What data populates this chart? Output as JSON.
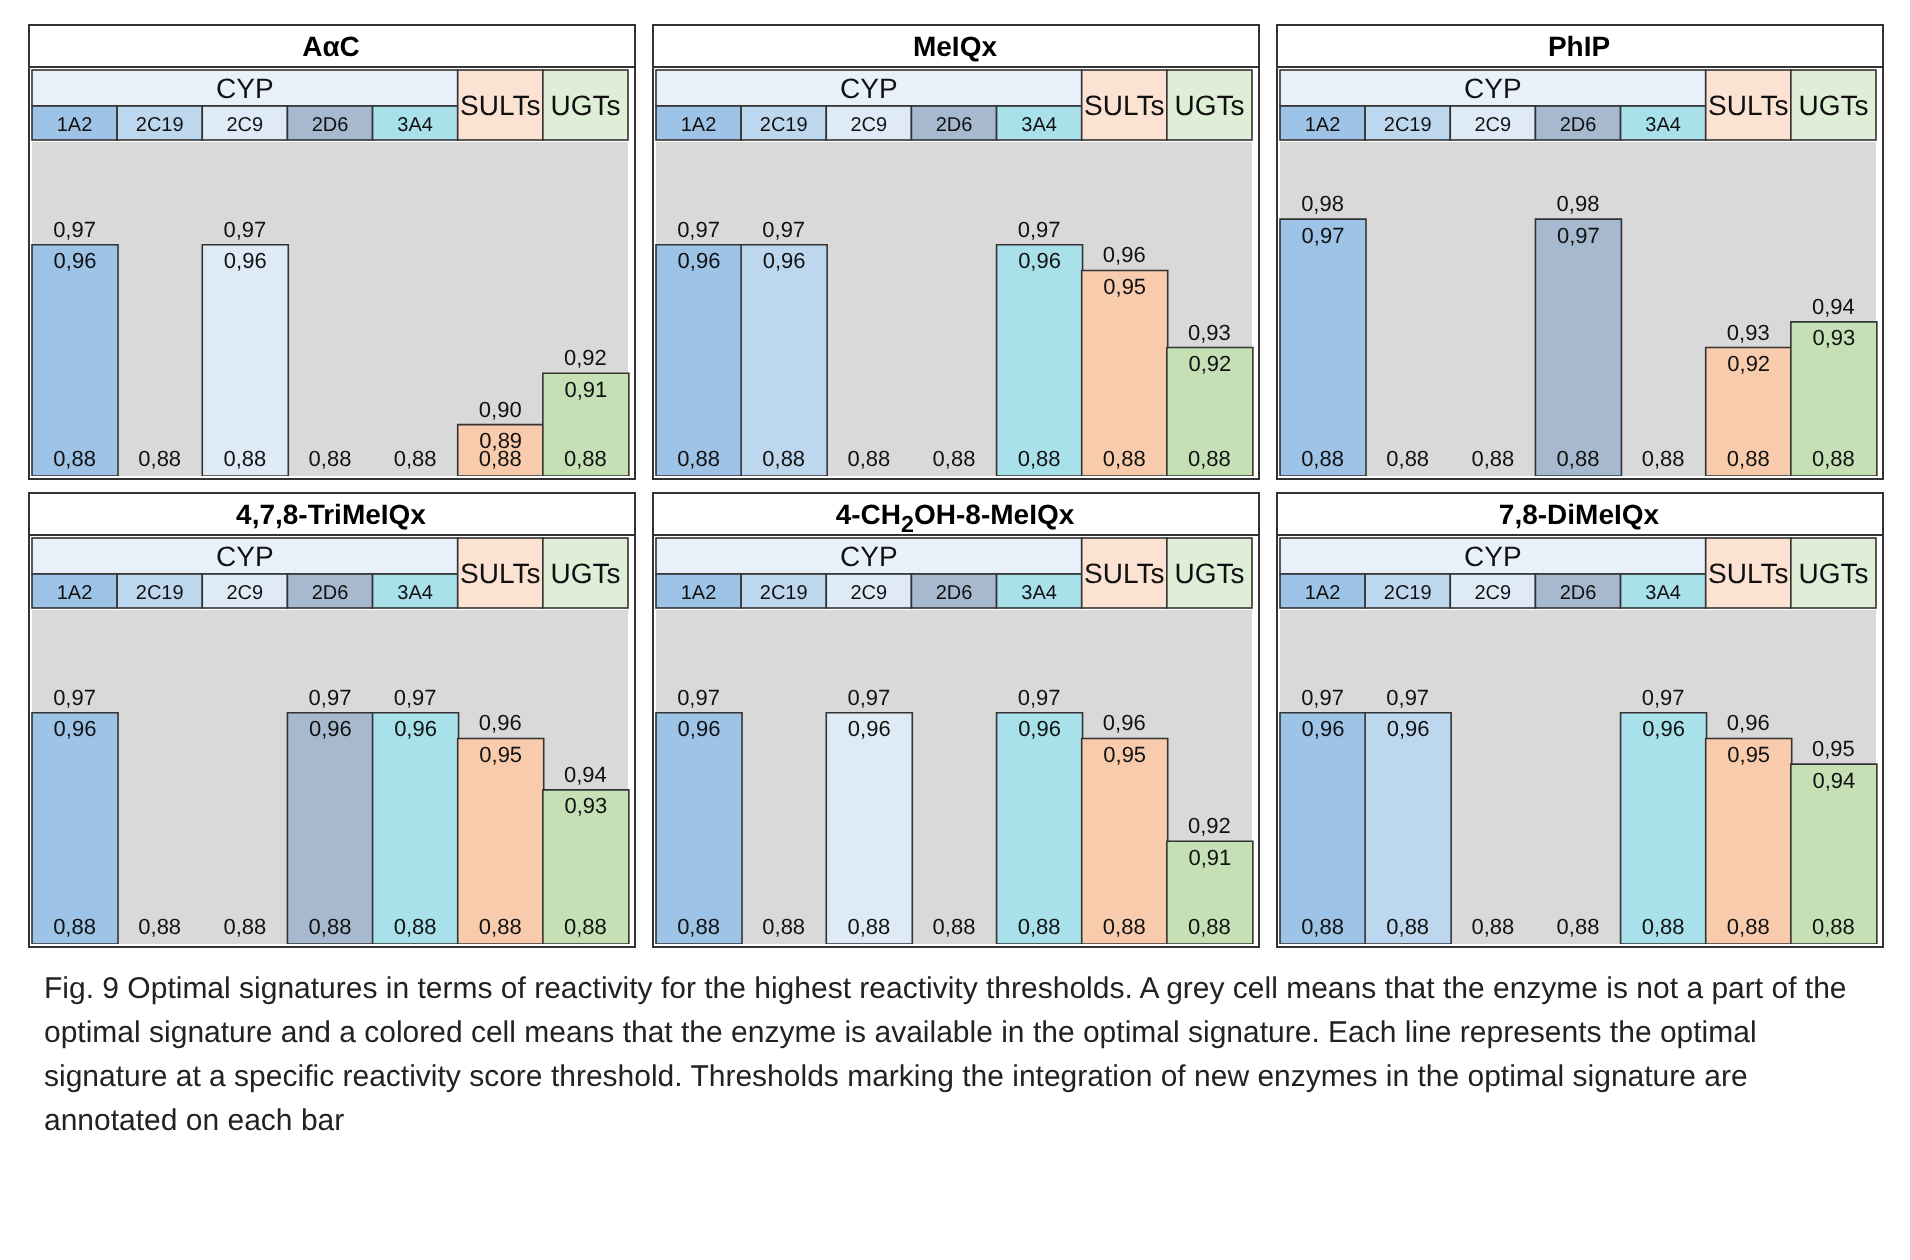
{
  "chart_data": [
    {
      "type": "bar",
      "title": "AαC",
      "xlabel": "CYP",
      "categories": [
        "1A2",
        "2C19",
        "2C9",
        "2D6",
        "3A4",
        "SULTs",
        "UGTs"
      ],
      "values": [
        0.96,
        null,
        0.96,
        null,
        null,
        0.89,
        0.91
      ],
      "value_labels": [
        "0,96",
        null,
        "0,96",
        null,
        null,
        "0,89",
        "0,91"
      ],
      "colors": [
        "#9dc3e6",
        "#bdd7ee",
        "#deebf7",
        "#a6b9cf",
        "#a9e1ea",
        "#f8cbad",
        "#c5e0b4"
      ],
      "ylim": [
        0.87,
        1.0
      ],
      "tick_labels": "x",
      "grid": false,
      "annotations": [
        "0,88",
        "0,88",
        "0,88",
        "0,88",
        "0,88",
        "0,88",
        "0,88",
        {
          "text": "0,97",
          "x": "1A2",
          "y": 0.96
        },
        {
          "text": "0,97",
          "x": "2C9",
          "y": 0.96
        },
        {
          "text": "0,90",
          "x": "SULTs",
          "y": 0.89
        },
        {
          "text": "0,92",
          "x": "UGTs",
          "y": 0.91
        }
      ]
    },
    {
      "type": "bar",
      "title": "MeIQx",
      "xlabel": "CYP",
      "categories": [
        "1A2",
        "2C19",
        "2C9",
        "2D6",
        "3A4",
        "SULTs",
        "UGTs"
      ],
      "values": [
        0.96,
        0.96,
        null,
        null,
        0.96,
        0.95,
        0.92
      ],
      "value_labels": [
        "0,96",
        "0,96",
        null,
        null,
        "0,96",
        "0,95",
        "0,92"
      ],
      "colors": [
        "#9dc3e6",
        "#bdd7ee",
        "#deebf7",
        "#a6b9cf",
        "#a9e1ea",
        "#f8cbad",
        "#c5e0b4"
      ],
      "ylim": [
        0.87,
        1.0
      ],
      "tick_labels": "x",
      "grid": false,
      "annotations": [
        "0,88",
        "0,88",
        "0,88",
        "0,88",
        "0,88",
        "0,88",
        "0,88",
        {
          "text": "0,97",
          "x": "1A2",
          "y": 0.96
        },
        {
          "text": "0,97",
          "x": "2C19",
          "y": 0.96
        },
        {
          "text": "0,97",
          "x": "3A4",
          "y": 0.96
        },
        {
          "text": "0,96",
          "x": "SULTs",
          "y": 0.95
        },
        {
          "text": "0,93",
          "x": "UGTs",
          "y": 0.92
        }
      ]
    },
    {
      "type": "bar",
      "title": "PhIP",
      "xlabel": "CYP",
      "categories": [
        "1A2",
        "2C19",
        "2C9",
        "2D6",
        "3A4",
        "SULTs",
        "UGTs"
      ],
      "values": [
        0.97,
        null,
        null,
        0.97,
        null,
        0.92,
        0.93
      ],
      "value_labels": [
        "0,97",
        null,
        null,
        "0,97",
        null,
        "0,92",
        "0,93"
      ],
      "colors": [
        "#9dc3e6",
        "#bdd7ee",
        "#deebf7",
        "#a6b9cf",
        "#a9e1ea",
        "#f8cbad",
        "#c5e0b4"
      ],
      "ylim": [
        0.87,
        1.0
      ],
      "tick_labels": "x",
      "grid": false,
      "annotations": [
        "0,88",
        "0,88",
        "0,88",
        "0,88",
        "0,88",
        "0,88",
        "0,88",
        {
          "text": "0,98",
          "x": "1A2",
          "y": 0.97
        },
        {
          "text": "0,98",
          "x": "2D6",
          "y": 0.97
        },
        {
          "text": "0,93",
          "x": "SULTs",
          "y": 0.92
        },
        {
          "text": "0,94",
          "x": "UGTs",
          "y": 0.93
        }
      ]
    },
    {
      "type": "bar",
      "title": "4,7,8-TriMeIQx",
      "xlabel": "CYP",
      "categories": [
        "1A2",
        "2C19",
        "2C9",
        "2D6",
        "3A4",
        "SULTs",
        "UGTs"
      ],
      "values": [
        0.96,
        null,
        null,
        0.96,
        0.96,
        0.95,
        0.93
      ],
      "value_labels": [
        "0,96",
        null,
        null,
        "0,96",
        "0,96",
        "0,95",
        "0,93"
      ],
      "colors": [
        "#9dc3e6",
        "#bdd7ee",
        "#deebf7",
        "#a6b9cf",
        "#a9e1ea",
        "#f8cbad",
        "#c5e0b4"
      ],
      "ylim": [
        0.87,
        1.0
      ],
      "tick_labels": "x",
      "grid": false,
      "annotations": [
        "0,88",
        "0,88",
        "0,88",
        "0,88",
        "0,88",
        "0,88",
        "0,88",
        {
          "text": "0,97",
          "x": "1A2",
          "y": 0.96
        },
        {
          "text": "0,97",
          "x": "2D6",
          "y": 0.96
        },
        {
          "text": "0,97",
          "x": "3A4",
          "y": 0.96
        },
        {
          "text": "0,96",
          "x": "SULTs",
          "y": 0.95
        },
        {
          "text": "0,94",
          "x": "UGTs",
          "y": 0.93
        }
      ]
    },
    {
      "type": "bar",
      "title": "4-CH$_{2}$OH-8-MeIQx",
      "xlabel": "CYP",
      "categories": [
        "1A2",
        "2C19",
        "2C9",
        "2D6",
        "3A4",
        "SULTs",
        "UGTs"
      ],
      "values": [
        0.96,
        null,
        0.96,
        null,
        0.96,
        0.95,
        0.91
      ],
      "value_labels": [
        "0,96",
        null,
        "0,96",
        null,
        "0,96",
        "0,95",
        "0,91"
      ],
      "colors": [
        "#9dc3e6",
        "#bdd7ee",
        "#deebf7",
        "#a6b9cf",
        "#a9e1ea",
        "#f8cbad",
        "#c5e0b4"
      ],
      "ylim": [
        0.87,
        1.0
      ],
      "tick_labels": "x",
      "grid": false,
      "annotations": [
        "0,88",
        "0,88",
        "0,88",
        "0,88",
        "0,88",
        "0,88",
        "0,88",
        {
          "text": "0,97",
          "x": "1A2",
          "y": 0.96
        },
        {
          "text": "0,97",
          "x": "2C9",
          "y": 0.96
        },
        {
          "text": "0,97",
          "x": "3A4",
          "y": 0.96
        },
        {
          "text": "0,96",
          "x": "SULTs",
          "y": 0.95
        },
        {
          "text": "0,92",
          "x": "UGTs",
          "y": 0.91
        }
      ]
    },
    {
      "type": "bar",
      "title": "7,8-DiMeIQx",
      "xlabel": "CYP",
      "categories": [
        "1A2",
        "2C19",
        "2C9",
        "2D6",
        "3A4",
        "SULTs",
        "UGTs"
      ],
      "values": [
        0.96,
        0.96,
        null,
        null,
        0.96,
        0.95,
        0.94
      ],
      "value_labels": [
        "0,96",
        "0,96",
        null,
        null,
        "0,96",
        "0,95",
        "0,94"
      ],
      "colors": [
        "#9dc3e6",
        "#bdd7ee",
        "#deebf7",
        "#a6b9cf",
        "#a9e1ea",
        "#f8cbad",
        "#c5e0b4"
      ],
      "ylim": [
        0.87,
        1.0
      ],
      "tick_labels": "x",
      "grid": false,
      "annotations": [
        "0,88",
        "0,88",
        "0,88",
        "0,88",
        "0,88",
        "0,88",
        "0,88",
        {
          "text": "0,97",
          "x": "1A2",
          "y": 0.96
        },
        {
          "text": "0,97",
          "x": "2C19",
          "y": 0.96
        },
        {
          "text": "0,97",
          "x": "3A4",
          "y": 0.96
        },
        {
          "text": "0,96",
          "x": "SULTs",
          "y": 0.95
        },
        {
          "text": "0,95",
          "x": "UGTs",
          "y": 0.94
        },
        "Fig. 9 Optimal signatures in terms of reactivity for the highest reactivity thresholds. A grey cell means that the enzyme is not a part of the optimal signature and a colored cell means that the enzyme is available in the optimal signature. Each line represents the optimal signature at a specific reactivity score threshold. Thresholds marking the integration of new enzymes in the optimal signature are annotated on each bar"
      ]
    }
  ]
}
